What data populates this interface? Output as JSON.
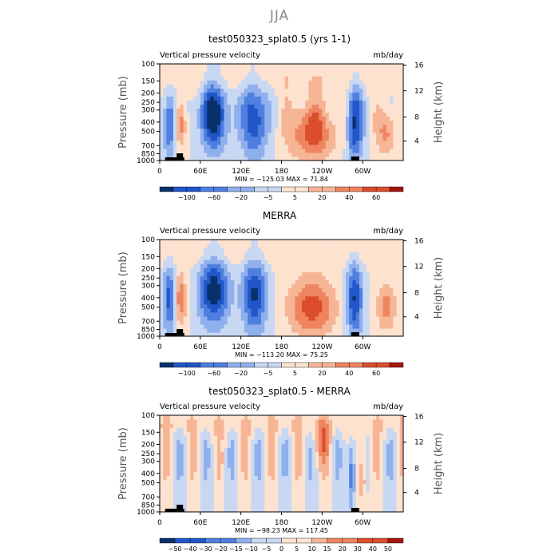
{
  "suptitle": "JJA",
  "panels": [
    {
      "title": "test050323_splat0.5 (yrs 1-1)",
      "stats": "MIN = −125.03   MAX =  71.84"
    },
    {
      "title": "MERRA",
      "stats": "MIN = −113.20   MAX =  75.25"
    },
    {
      "title": "test050323_splat0.5 - MERRA",
      "stats": "MIN = −98.23   MAX = 117.45"
    }
  ],
  "chart_data": {
    "type": "heatmap",
    "subtitle_left": "Vertical pressure velocity",
    "subtitle_right": "mb/day",
    "ylabel": "Pressure (mb)",
    "ylabel_right": "Height (km)",
    "x_ticks": [
      "0",
      "60E",
      "120E",
      "180",
      "120W",
      "60W"
    ],
    "x_tick_lons": [
      0,
      60,
      120,
      180,
      240,
      300
    ],
    "xlim": [
      0,
      360
    ],
    "pressure_ticks": [
      "100",
      "150",
      "200",
      "250",
      "300",
      "400",
      "500",
      "700",
      "850",
      "1000"
    ],
    "height_ticks": [
      "16",
      "12",
      "8",
      "4"
    ],
    "ylim": [
      1000,
      100
    ],
    "y_scale": "log",
    "colorbar_levels_mean": [
      "−100",
      "−60",
      "−20",
      "−5",
      "5",
      "20",
      "40",
      "60"
    ],
    "colorbar_levels_diff": [
      "−50",
      "−40",
      "−30",
      "−20",
      "−15",
      "−10",
      "−5",
      "0",
      "5",
      "10",
      "15",
      "20",
      "30",
      "40",
      "50"
    ],
    "colors": {
      "strong_down": "#08306b",
      "mid_down": "#1f5fd6",
      "light_down": "#6f97e6",
      "pale_down": "#bcd0f0",
      "pale_up": "#fbe0cf",
      "light_up": "#f3a07d",
      "mid_up": "#e1613e",
      "strong_up": "#7a0e0e"
    },
    "diff_min": -98.23,
    "diff_max": 117.45,
    "mean_min_model": -125.03,
    "mean_max_model": 71.84,
    "mean_min_merra": -113.2,
    "mean_max_merra": 75.25
  }
}
